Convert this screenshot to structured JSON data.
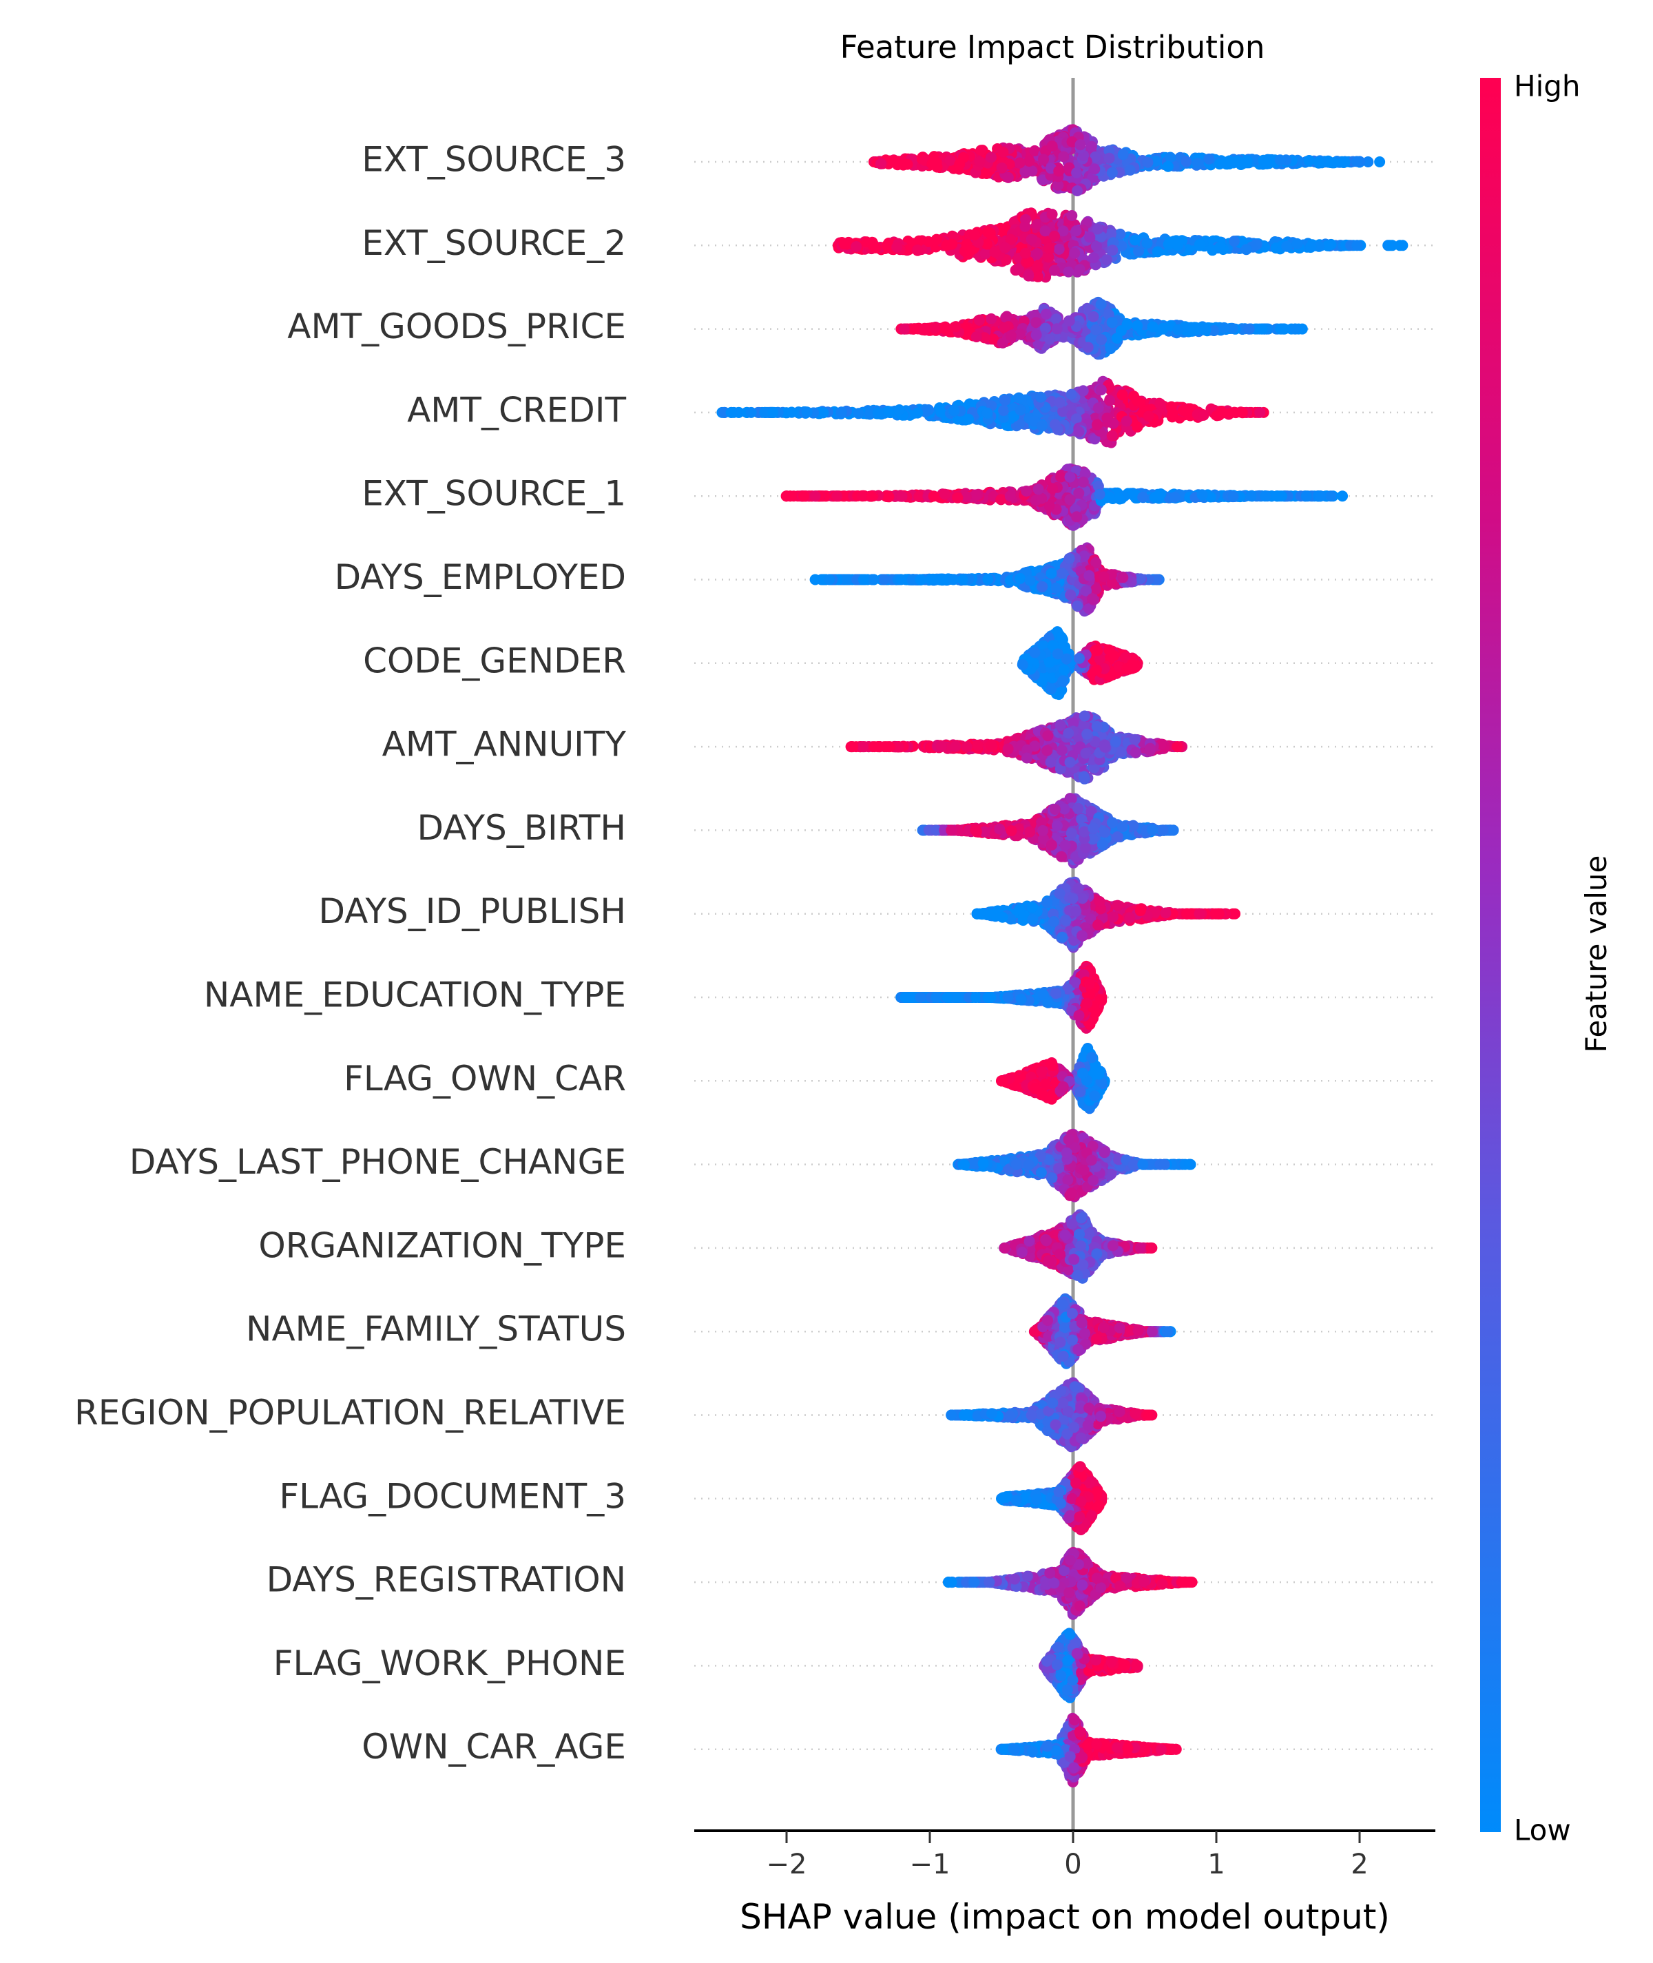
{
  "chart_data": {
    "type": "scatter",
    "subtype": "beeswarm",
    "title": "Feature Impact Distribution",
    "xlabel": "SHAP value (impact on model output)",
    "ylabel": "",
    "xlim": [
      -2.7,
      2.5
    ],
    "xticks": [
      -2,
      -1,
      0,
      1,
      2
    ],
    "xtick_labels": [
      "−2",
      "−1",
      "0",
      "1",
      "2"
    ],
    "grid": false,
    "zero_line_color": "#999999",
    "colorbar": {
      "label": "Feature value",
      "high_label": "High",
      "low_label": "Low",
      "low_color": "#008bfb",
      "high_color": "#ff0051",
      "placement": "right"
    },
    "profile_format": [
      "shap_value",
      "relative_density",
      "feature_value_level_0_low_1_high"
    ],
    "features": [
      {
        "name": "EXT_SOURCE_3",
        "profile": [
          [
            -1.39,
            0.15,
            1
          ],
          [
            -0.8,
            0.3,
            1
          ],
          [
            -0.5,
            0.55,
            0.85
          ],
          [
            -0.3,
            0.45,
            0.75
          ],
          [
            0,
            1.0,
            0.62
          ],
          [
            0.2,
            0.5,
            0.4
          ],
          [
            0.5,
            0.25,
            0.1
          ],
          [
            1,
            0.2,
            0
          ],
          [
            2.0,
            0.12,
            0
          ],
          [
            2.14,
            0.05,
            0
          ]
        ]
      },
      {
        "name": "EXT_SOURCE_2",
        "profile": [
          [
            -1.64,
            0.2,
            1
          ],
          [
            -1,
            0.25,
            1
          ],
          [
            -0.5,
            0.6,
            0.95
          ],
          [
            -0.3,
            1.0,
            0.85
          ],
          [
            0,
            0.9,
            0.7
          ],
          [
            0.2,
            0.6,
            0.4
          ],
          [
            0.4,
            0.35,
            0.1
          ],
          [
            0.8,
            0.25,
            0
          ],
          [
            1.5,
            0.2,
            0
          ],
          [
            2.0,
            0.1,
            0
          ],
          [
            2.3,
            0.05,
            0
          ]
        ]
      },
      {
        "name": "AMT_GOODS_PRICE",
        "profile": [
          [
            -1.2,
            0.1,
            1
          ],
          [
            -0.8,
            0.2,
            1
          ],
          [
            -0.5,
            0.5,
            0.85
          ],
          [
            -0.35,
            0.3,
            0.7
          ],
          [
            -0.2,
            0.7,
            0.5
          ],
          [
            -0.05,
            0.3,
            0.5
          ],
          [
            0.2,
            0.9,
            0.2
          ],
          [
            0.35,
            0.3,
            0.05
          ],
          [
            1.0,
            0.15,
            0
          ],
          [
            1.6,
            0.05,
            0
          ]
        ]
      },
      {
        "name": "AMT_CREDIT",
        "profile": [
          [
            -2.45,
            0.05,
            0
          ],
          [
            -2.2,
            0.1,
            0
          ],
          [
            -1,
            0.2,
            0
          ],
          [
            -0.3,
            0.55,
            0.1
          ],
          [
            0,
            0.6,
            0.4
          ],
          [
            0.25,
            1.0,
            0.8
          ],
          [
            0.5,
            0.4,
            1
          ],
          [
            1.0,
            0.2,
            1
          ],
          [
            1.33,
            0.05,
            1
          ]
        ]
      },
      {
        "name": "EXT_SOURCE_1",
        "profile": [
          [
            -2.0,
            0.08,
            1
          ],
          [
            -1,
            0.15,
            0.95
          ],
          [
            -0.3,
            0.25,
            0.8
          ],
          [
            0,
            0.9,
            0.6
          ],
          [
            0.15,
            0.6,
            0.5
          ],
          [
            0.2,
            0.2,
            0
          ],
          [
            1.5,
            0.1,
            0
          ],
          [
            1.88,
            0.05,
            0
          ]
        ]
      },
      {
        "name": "DAYS_EMPLOYED",
        "profile": [
          [
            -1.8,
            0.08,
            0
          ],
          [
            -0.5,
            0.15,
            0
          ],
          [
            -0.1,
            0.5,
            0.1
          ],
          [
            0.1,
            1.0,
            0.6
          ],
          [
            0.2,
            0.3,
            0.9
          ],
          [
            0.6,
            0.05,
            0.1
          ]
        ]
      },
      {
        "name": "CODE_GENDER",
        "profile": [
          [
            -0.35,
            0.2,
            0
          ],
          [
            -0.1,
            1.0,
            0
          ],
          [
            0,
            0.1,
            0
          ],
          [
            0.15,
            0.6,
            1
          ],
          [
            0.45,
            0.2,
            1
          ]
        ]
      },
      {
        "name": "AMT_ANNUITY",
        "profile": [
          [
            -1.55,
            0.08,
            1
          ],
          [
            -0.5,
            0.2,
            0.9
          ],
          [
            -0.1,
            0.7,
            0.5
          ],
          [
            0.1,
            1.0,
            0.4
          ],
          [
            0.3,
            0.4,
            0.3
          ],
          [
            0.76,
            0.08,
            0.9
          ]
        ]
      },
      {
        "name": "DAYS_BIRTH",
        "profile": [
          [
            -1.05,
            0.05,
            0.1
          ],
          [
            -0.8,
            0.12,
            0.9
          ],
          [
            -0.3,
            0.3,
            0.8
          ],
          [
            0,
            1.0,
            0.5
          ],
          [
            0.3,
            0.3,
            0.2
          ],
          [
            0.7,
            0.08,
            0.1
          ]
        ]
      },
      {
        "name": "DAYS_ID_PUBLISH",
        "profile": [
          [
            -0.67,
            0.1,
            0
          ],
          [
            -0.2,
            0.4,
            0.1
          ],
          [
            0,
            1.0,
            0.4
          ],
          [
            0.2,
            0.4,
            0.8
          ],
          [
            0.75,
            0.1,
            1
          ],
          [
            1.13,
            0.05,
            1
          ]
        ]
      },
      {
        "name": "NAME_EDUCATION_TYPE",
        "profile": [
          [
            -1.2,
            0.1,
            0
          ],
          [
            -0.6,
            0.1,
            0
          ],
          [
            -0.3,
            0.2,
            0.1
          ],
          [
            -0.05,
            0.3,
            0.2
          ],
          [
            0.1,
            1.0,
            1
          ],
          [
            0.2,
            0.2,
            1
          ]
        ]
      },
      {
        "name": "FLAG_OWN_CAR",
        "profile": [
          [
            -0.5,
            0.1,
            1
          ],
          [
            -0.15,
            0.6,
            1
          ],
          [
            0,
            0.1,
            0.5
          ],
          [
            0.1,
            1.0,
            0
          ],
          [
            0.22,
            0.15,
            0
          ]
        ]
      },
      {
        "name": "DAYS_LAST_PHONE_CHANGE",
        "profile": [
          [
            -0.8,
            0.1,
            0
          ],
          [
            -0.2,
            0.4,
            0.2
          ],
          [
            0,
            1.0,
            0.7
          ],
          [
            0.3,
            0.3,
            0.4
          ],
          [
            0.5,
            0.1,
            0.1
          ],
          [
            0.82,
            0.05,
            0
          ]
        ]
      },
      {
        "name": "ORGANIZATION_TYPE",
        "profile": [
          [
            -0.48,
            0.1,
            0.6
          ],
          [
            -0.1,
            0.6,
            0.8
          ],
          [
            0.05,
            1.0,
            0.3
          ],
          [
            0.2,
            0.3,
            0.4
          ],
          [
            0.55,
            0.05,
            1
          ]
        ]
      },
      {
        "name": "NAME_FAMILY_STATUS",
        "profile": [
          [
            -0.27,
            0.1,
            0.9
          ],
          [
            -0.05,
            1.0,
            0.15
          ],
          [
            0.1,
            0.4,
            0.8
          ],
          [
            0.5,
            0.12,
            0.8
          ],
          [
            0.68,
            0.05,
            0
          ]
        ]
      },
      {
        "name": "REGION_POPULATION_RELATIVE",
        "profile": [
          [
            -0.85,
            0.1,
            0
          ],
          [
            -0.3,
            0.2,
            0.2
          ],
          [
            0,
            1.0,
            0.4
          ],
          [
            0.2,
            0.3,
            0.7
          ],
          [
            0.55,
            0.08,
            1
          ]
        ]
      },
      {
        "name": "FLAG_DOCUMENT_3",
        "profile": [
          [
            -0.5,
            0.15,
            0
          ],
          [
            -0.1,
            0.3,
            0.1
          ],
          [
            0.05,
            1.0,
            1
          ],
          [
            0.2,
            0.2,
            1
          ]
        ]
      },
      {
        "name": "DAYS_REGISTRATION",
        "profile": [
          [
            -0.87,
            0.05,
            0
          ],
          [
            -0.6,
            0.1,
            0.3
          ],
          [
            -0.1,
            0.4,
            0.6
          ],
          [
            0,
            1.0,
            0.6
          ],
          [
            0.2,
            0.3,
            0.8
          ],
          [
            0.83,
            0.1,
            1
          ]
        ]
      },
      {
        "name": "FLAG_WORK_PHONE",
        "profile": [
          [
            -0.2,
            0.15,
            0.5
          ],
          [
            -0.03,
            1.0,
            0
          ],
          [
            0.1,
            0.3,
            1
          ],
          [
            0.45,
            0.15,
            1
          ]
        ]
      },
      {
        "name": "OWN_CAR_AGE",
        "profile": [
          [
            -0.5,
            0.1,
            0
          ],
          [
            -0.1,
            0.25,
            0.1
          ],
          [
            0,
            1.0,
            0.6
          ],
          [
            0.1,
            0.3,
            1
          ],
          [
            0.72,
            0.1,
            1
          ]
        ]
      }
    ]
  }
}
